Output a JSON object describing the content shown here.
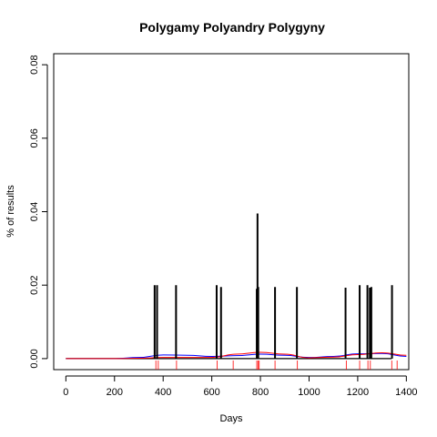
{
  "chart_data": {
    "type": "line",
    "title": "Polygamy Polyandry Polygyny",
    "xlabel": "Days",
    "ylabel": "% of results",
    "xlim": [
      -50,
      1410
    ],
    "ylim": [
      -0.003,
      0.083
    ],
    "x_ticks": [
      0,
      200,
      400,
      600,
      800,
      1000,
      1200,
      1400
    ],
    "x_tick_labels": [
      "0",
      "200",
      "400",
      "600",
      "800",
      "1000",
      "1200",
      "1400"
    ],
    "y_ticks": [
      0.0,
      0.02,
      0.04,
      0.06,
      0.08
    ],
    "y_tick_labels": [
      "0.00",
      "0.02",
      "0.04",
      "0.06",
      "0.08"
    ],
    "grid": false,
    "legend": "none",
    "series": [
      {
        "color": "#000000",
        "style": "spikes",
        "x": [
          365,
          375,
          453,
          620,
          638,
          785,
          788,
          791,
          860,
          950,
          1150,
          1208,
          1240,
          1250,
          1256,
          1341
        ],
        "y": [
          0.02,
          0.02,
          0.02,
          0.02,
          0.0195,
          0.019,
          0.0395,
          0.0195,
          0.0195,
          0.0195,
          0.0193,
          0.02,
          0.02,
          0.0193,
          0.0195,
          0.02
        ]
      },
      {
        "color": "#0000ff",
        "style": "smooth",
        "x": [
          0,
          200,
          300,
          400,
          500,
          600,
          700,
          800,
          900,
          1000,
          1100,
          1200,
          1300,
          1400
        ],
        "y": [
          0.0,
          0.0,
          0.0003,
          0.001,
          0.0009,
          0.0006,
          0.0008,
          0.0012,
          0.0009,
          0.0003,
          0.0006,
          0.0013,
          0.0014,
          0.0006
        ]
      },
      {
        "color": "#ff0000",
        "style": "smooth",
        "x": [
          0,
          200,
          300,
          400,
          500,
          600,
          700,
          800,
          900,
          1000,
          1100,
          1200,
          1300,
          1400
        ],
        "y": [
          0.0,
          0.0,
          0.0001,
          0.0003,
          0.0003,
          0.0003,
          0.0012,
          0.0017,
          0.0012,
          0.0002,
          0.0004,
          0.0011,
          0.0016,
          0.0009
        ]
      }
    ],
    "rug": {
      "color": "#ff0000",
      "x": [
        370,
        380,
        455,
        622,
        688,
        785,
        790,
        795,
        860,
        952,
        1153,
        1208,
        1242,
        1252,
        1340,
        1362
      ]
    }
  }
}
